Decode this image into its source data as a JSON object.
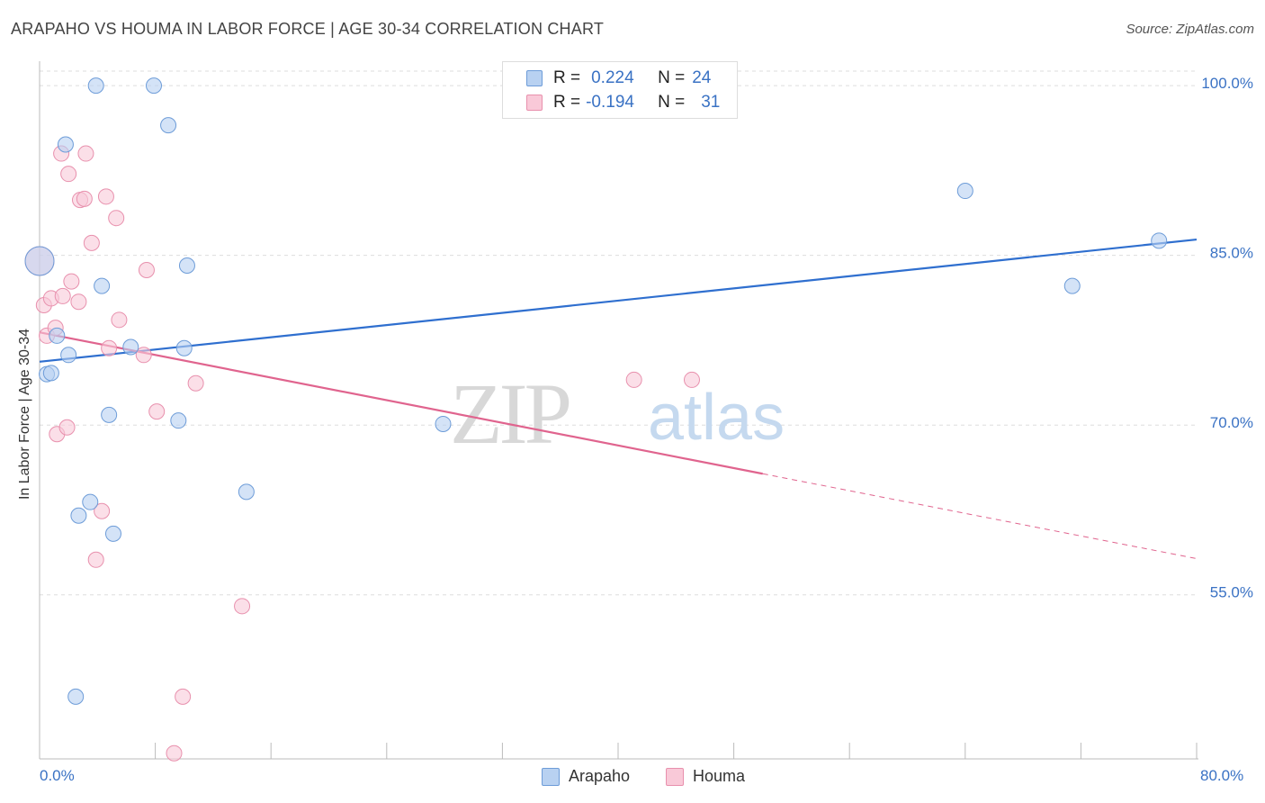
{
  "title": "ARAPAHO VS HOUMA IN LABOR FORCE | AGE 30-34 CORRELATION CHART",
  "source": "Source: ZipAtlas.com",
  "watermark": {
    "zip": "ZIP",
    "atlas": "atlas"
  },
  "legend": {
    "arapaho": {
      "r_label": "R =",
      "r_value": "0.224",
      "n_label": "N =",
      "n_value": "24"
    },
    "houma": {
      "r_label": "R =",
      "r_value": "-0.194",
      "n_label": "N =",
      "n_value": "31"
    }
  },
  "bottom_legend": {
    "arapaho": "Arapaho",
    "houma": "Houma"
  },
  "colors": {
    "arapaho_fill": "#b8d1f1",
    "arapaho_stroke": "#6d9cd8",
    "arapaho_line": "#2f6fcf",
    "houma_fill": "#f9c9d8",
    "houma_stroke": "#e890ad",
    "houma_line": "#e0648e",
    "axis_text": "#3a72c4",
    "grid": "#dddddd"
  },
  "chart_data": {
    "type": "scatter",
    "title": "ARAPAHO VS HOUMA IN LABOR FORCE | AGE 30-34 CORRELATION CHART",
    "xlabel": "",
    "ylabel": "In Labor Force | Age 30-34",
    "xlim": [
      0,
      80
    ],
    "ylim": [
      40.5,
      102
    ],
    "x_tick_labels": {
      "left": "0.0%",
      "right": "80.0%"
    },
    "y_ticks": [
      {
        "value": 100,
        "label": "100.0%"
      },
      {
        "value": 85,
        "label": "85.0%"
      },
      {
        "value": 70,
        "label": "70.0%"
      },
      {
        "value": 55,
        "label": "55.0%"
      }
    ],
    "series": [
      {
        "name": "Arapaho",
        "points": [
          [
            0.0,
            84.5
          ],
          [
            0.5,
            74.5
          ],
          [
            0.8,
            74.6
          ],
          [
            1.2,
            77.9
          ],
          [
            1.8,
            94.8
          ],
          [
            2.0,
            76.2
          ],
          [
            2.5,
            46.0
          ],
          [
            2.7,
            62.0
          ],
          [
            3.5,
            63.2
          ],
          [
            3.9,
            100.0
          ],
          [
            4.3,
            82.3
          ],
          [
            4.8,
            70.9
          ],
          [
            5.1,
            60.4
          ],
          [
            6.3,
            76.9
          ],
          [
            7.9,
            100.0
          ],
          [
            8.9,
            96.5
          ],
          [
            9.6,
            70.4
          ],
          [
            10.0,
            76.8
          ],
          [
            10.2,
            84.1
          ],
          [
            14.3,
            64.1
          ],
          [
            27.9,
            70.1
          ],
          [
            64.0,
            90.7
          ],
          [
            71.4,
            82.3
          ],
          [
            77.4,
            86.3
          ]
        ],
        "trend": {
          "x0": 0,
          "y0": 75.6,
          "x1": 80,
          "y1": 86.4
        }
      },
      {
        "name": "Houma",
        "points": [
          [
            0.0,
            84.5
          ],
          [
            0.3,
            80.6
          ],
          [
            0.5,
            77.9
          ],
          [
            0.8,
            81.2
          ],
          [
            1.1,
            78.6
          ],
          [
            1.2,
            69.2
          ],
          [
            1.5,
            94.0
          ],
          [
            1.6,
            81.4
          ],
          [
            1.9,
            69.8
          ],
          [
            2.0,
            92.2
          ],
          [
            2.2,
            82.7
          ],
          [
            2.7,
            80.9
          ],
          [
            2.8,
            89.9
          ],
          [
            3.1,
            90.0
          ],
          [
            3.2,
            94.0
          ],
          [
            3.6,
            86.1
          ],
          [
            3.9,
            58.1
          ],
          [
            4.3,
            62.4
          ],
          [
            4.6,
            90.2
          ],
          [
            4.8,
            76.8
          ],
          [
            5.3,
            88.3
          ],
          [
            5.5,
            79.3
          ],
          [
            7.2,
            76.2
          ],
          [
            7.4,
            83.7
          ],
          [
            8.1,
            71.2
          ],
          [
            9.3,
            41.0
          ],
          [
            9.9,
            46.0
          ],
          [
            10.8,
            73.7
          ],
          [
            14.0,
            54.0
          ],
          [
            41.1,
            74.0
          ],
          [
            45.1,
            74.0
          ]
        ],
        "trend": {
          "x0": 0,
          "y0": 78.2,
          "x1": 50,
          "y1": 65.7
        },
        "trend_dashed": {
          "x0": 50,
          "y0": 65.7,
          "x1": 80,
          "y1": 58.2
        }
      }
    ]
  }
}
